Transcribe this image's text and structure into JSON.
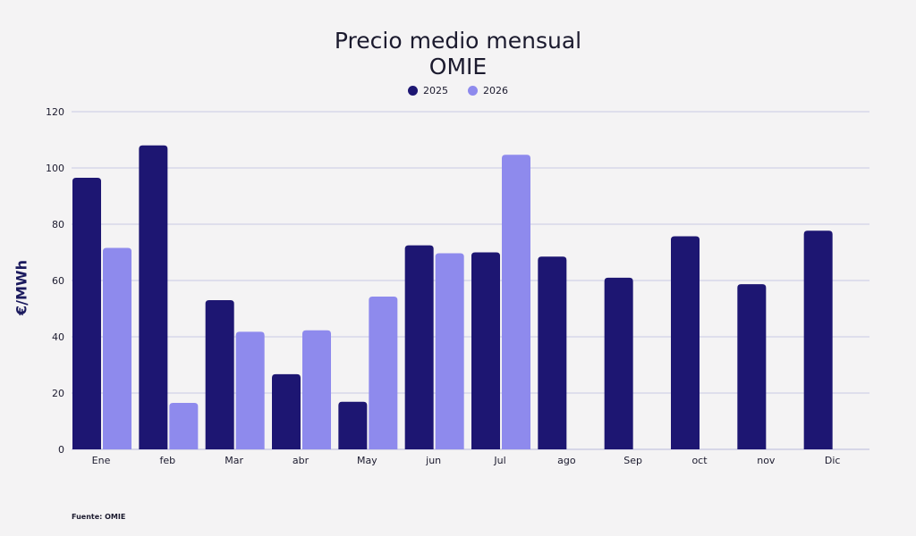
{
  "chart_data": {
    "type": "bar",
    "title": "Precio medio mensual",
    "subtitle": "OMIE",
    "ylabel": "€/MWh",
    "xlabel": "",
    "ylim": [
      0,
      120
    ],
    "yticks": [
      0,
      20,
      40,
      60,
      80,
      100,
      120
    ],
    "categories": [
      "Ene",
      "feb",
      "Mar",
      "abr",
      "May",
      "jun",
      "Jul",
      "ago",
      "Sep",
      "oct",
      "nov",
      "Dic"
    ],
    "series": [
      {
        "name": "2025",
        "color": "#1d1672",
        "values": [
          96.5,
          108,
          53,
          26.7,
          16.9,
          72.5,
          70,
          68.5,
          61,
          75.7,
          58.7,
          77.7
        ]
      },
      {
        "name": "2026",
        "color": "#8e8aed",
        "values": [
          71.6,
          16.5,
          41.8,
          42.3,
          54.3,
          69.7,
          104.7,
          null,
          null,
          null,
          null,
          null
        ]
      }
    ],
    "grid": true,
    "legend_position": "top-center"
  },
  "source": "Fuente: OMIE",
  "colors": {
    "grid": "#c9c8e3",
    "axis": "#b9b8da"
  }
}
